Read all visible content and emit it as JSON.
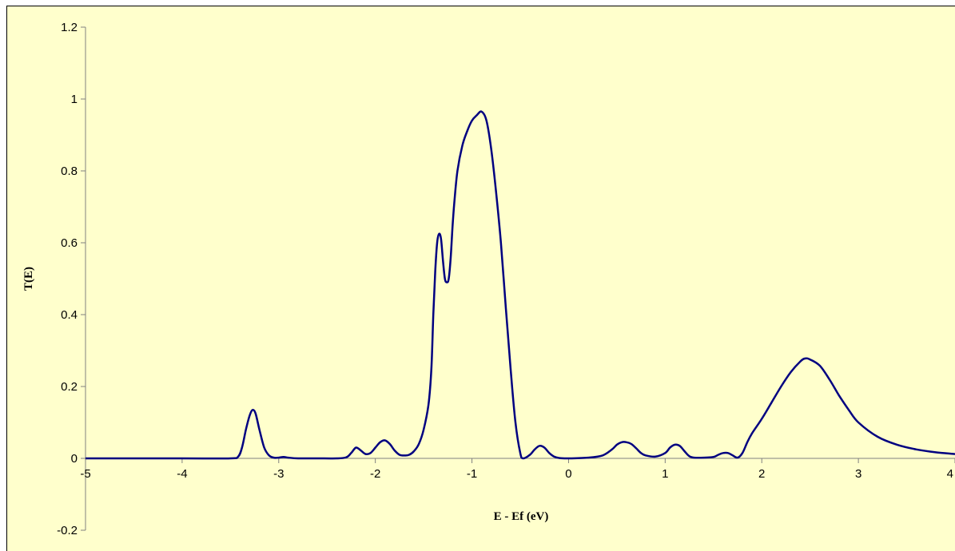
{
  "chart_data": {
    "type": "line",
    "title": "",
    "xlabel": "E - Ef (eV)",
    "ylabel": "T(E)",
    "xlim": [
      -5,
      4
    ],
    "ylim": [
      -0.2,
      1.2
    ],
    "x_ticks": [
      -5,
      -4,
      -3,
      -2,
      -1,
      0,
      1,
      2,
      3,
      4
    ],
    "y_ticks": [
      -0.2,
      0,
      0.2,
      0.4,
      0.6,
      0.8,
      1,
      1.2
    ],
    "x_tick_labels": [
      "-5",
      "-4",
      "-3",
      "-2",
      "-1",
      "0",
      "1",
      "2",
      "3",
      "4"
    ],
    "y_tick_labels": [
      "-0.2",
      "0",
      "0.2",
      "0.4",
      "0.6",
      "0.8",
      "1",
      "1.2"
    ],
    "grid": false,
    "legend": "none",
    "colors": {
      "background": "#FFFFCC",
      "line": "#000080",
      "axis": "#808080"
    },
    "series": [
      {
        "x": [
          -5,
          -4,
          -3.5,
          -3.42,
          -3.38,
          -3.34,
          -3.3,
          -3.27,
          -3.24,
          -3.2,
          -3.15,
          -3.1,
          -3.05,
          -3.0,
          -2.95,
          -2.9,
          -2.8,
          -2.6,
          -2.4,
          -2.3,
          -2.25,
          -2.2,
          -2.15,
          -2.1,
          -2.05,
          -2.0,
          -1.95,
          -1.9,
          -1.85,
          -1.8,
          -1.75,
          -1.7,
          -1.65,
          -1.6,
          -1.55,
          -1.5,
          -1.45,
          -1.42,
          -1.4,
          -1.38,
          -1.36,
          -1.34,
          -1.32,
          -1.3,
          -1.28,
          -1.26,
          -1.24,
          -1.22,
          -1.2,
          -1.18,
          -1.15,
          -1.1,
          -1.05,
          -1.0,
          -0.95,
          -0.9,
          -0.85,
          -0.8,
          -0.75,
          -0.7,
          -0.65,
          -0.6,
          -0.55,
          -0.5,
          -0.47,
          -0.4,
          -0.35,
          -0.3,
          -0.25,
          -0.2,
          -0.15,
          -0.1,
          0,
          0.2,
          0.35,
          0.45,
          0.5,
          0.55,
          0.6,
          0.65,
          0.7,
          0.75,
          0.8,
          0.9,
          1.0,
          1.05,
          1.1,
          1.15,
          1.2,
          1.25,
          1.3,
          1.4,
          1.5,
          1.55,
          1.6,
          1.65,
          1.7,
          1.75,
          1.8,
          1.85,
          1.9,
          2.0,
          2.1,
          2.2,
          2.3,
          2.4,
          2.45,
          2.5,
          2.6,
          2.7,
          2.8,
          2.9,
          3.0,
          3.2,
          3.4,
          3.6,
          3.8,
          4.0
        ],
        "y": [
          0,
          0,
          0,
          0.005,
          0.03,
          0.08,
          0.12,
          0.135,
          0.125,
          0.08,
          0.03,
          0.008,
          0.002,
          0.002,
          0.004,
          0.002,
          0,
          0,
          0,
          0.003,
          0.015,
          0.03,
          0.022,
          0.012,
          0.015,
          0.03,
          0.045,
          0.05,
          0.04,
          0.022,
          0.01,
          0.008,
          0.01,
          0.02,
          0.04,
          0.08,
          0.15,
          0.25,
          0.4,
          0.52,
          0.6,
          0.625,
          0.61,
          0.55,
          0.5,
          0.49,
          0.5,
          0.56,
          0.65,
          0.72,
          0.8,
          0.87,
          0.91,
          0.94,
          0.955,
          0.965,
          0.94,
          0.86,
          0.74,
          0.6,
          0.42,
          0.25,
          0.1,
          0.015,
          0.0,
          0.01,
          0.025,
          0.035,
          0.03,
          0.015,
          0.005,
          0.001,
          0,
          0.002,
          0.008,
          0.025,
          0.038,
          0.045,
          0.045,
          0.04,
          0.028,
          0.015,
          0.008,
          0.005,
          0.015,
          0.03,
          0.038,
          0.035,
          0.02,
          0.006,
          0.002,
          0.002,
          0.004,
          0.01,
          0.015,
          0.015,
          0.008,
          0.002,
          0.015,
          0.045,
          0.07,
          0.11,
          0.155,
          0.2,
          0.24,
          0.27,
          0.278,
          0.275,
          0.258,
          0.22,
          0.175,
          0.135,
          0.1,
          0.06,
          0.038,
          0.025,
          0.017,
          0.012
        ]
      }
    ]
  }
}
